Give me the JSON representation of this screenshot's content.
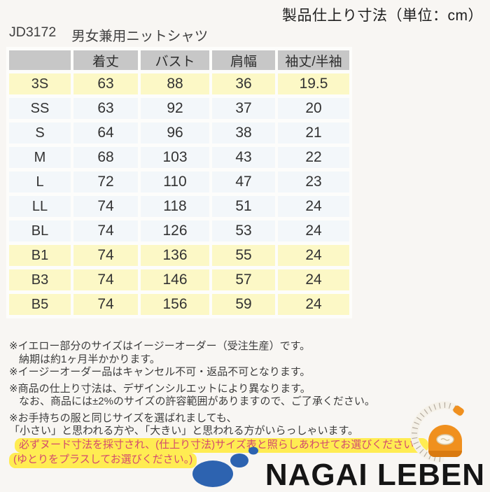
{
  "header": {
    "unit_note": "製品仕上り寸法（単位：cm）",
    "product_code": "JD3172",
    "product_name": "男女兼用ニットシャツ"
  },
  "table": {
    "columns": [
      "",
      "着丈",
      "バスト",
      "肩幅",
      "袖丈/半袖"
    ],
    "rows": [
      {
        "size": "3S",
        "values": [
          "63",
          "88",
          "36",
          "19.5"
        ],
        "highlight": true
      },
      {
        "size": "SS",
        "values": [
          "63",
          "92",
          "37",
          "20"
        ],
        "highlight": false
      },
      {
        "size": "S",
        "values": [
          "64",
          "96",
          "38",
          "21"
        ],
        "highlight": false
      },
      {
        "size": "M",
        "values": [
          "68",
          "103",
          "43",
          "22"
        ],
        "highlight": false
      },
      {
        "size": "L",
        "values": [
          "72",
          "110",
          "47",
          "23"
        ],
        "highlight": false
      },
      {
        "size": "LL",
        "values": [
          "74",
          "118",
          "51",
          "24"
        ],
        "highlight": false
      },
      {
        "size": "BL",
        "values": [
          "74",
          "126",
          "53",
          "24"
        ],
        "highlight": false
      },
      {
        "size": "B1",
        "values": [
          "74",
          "136",
          "55",
          "24"
        ],
        "highlight": true
      },
      {
        "size": "B3",
        "values": [
          "74",
          "146",
          "57",
          "24"
        ],
        "highlight": true
      },
      {
        "size": "B5",
        "values": [
          "74",
          "156",
          "59",
          "24"
        ],
        "highlight": true
      }
    ]
  },
  "notes": [
    {
      "text": "※イエロー部分のサイズはイージーオーダー（受注生産）です。",
      "indent": 0,
      "gap_before": false,
      "highlight": false
    },
    {
      "text": "納期は約1ヶ月半かかります。",
      "indent": 1,
      "gap_before": false,
      "highlight": false
    },
    {
      "text": "※イージーオーダー品はキャンセル不可・返品不可となります。",
      "indent": 0,
      "gap_before": false,
      "highlight": false
    },
    {
      "text": "※商品の仕上り寸法は、デザインシルエットにより異なります。",
      "indent": 0,
      "gap_before": true,
      "highlight": false
    },
    {
      "text": "なお、商品には±2%のサイズの許容範囲がありますので、ご了承ください。",
      "indent": 1,
      "gap_before": false,
      "highlight": false
    },
    {
      "text": "※お手持ちの服と同じサイズを選ばれましても、",
      "indent": 0,
      "gap_before": true,
      "highlight": false
    },
    {
      "text": "「小さい」と思われる方や、「大きい」と思われる方がいらっしゃいます。",
      "indent": 0,
      "gap_before": false,
      "highlight": false
    },
    {
      "text": "必ずヌード寸法を採寸され、(仕上り寸法)サイズ表と照らしあわせてお選びください。",
      "indent": 2,
      "gap_before": false,
      "highlight": true
    },
    {
      "text": "(ゆとりをプラスしてお選びください。)",
      "indent": 3,
      "gap_before": false,
      "highlight": true
    }
  ],
  "logo": {
    "text": "NAGAI LEBEN"
  },
  "colors": {
    "page_background": "#f8f6f3",
    "table_header_gray": "#c7c7c7",
    "row_yellow": "#fcf8c6",
    "row_light_blue": "#f3f7fa",
    "marker_yellow": "#ffec52",
    "marker_text_red": "#d24a6e",
    "logo_blue": "#2d63b0",
    "tape_orange": "#f0901e"
  }
}
